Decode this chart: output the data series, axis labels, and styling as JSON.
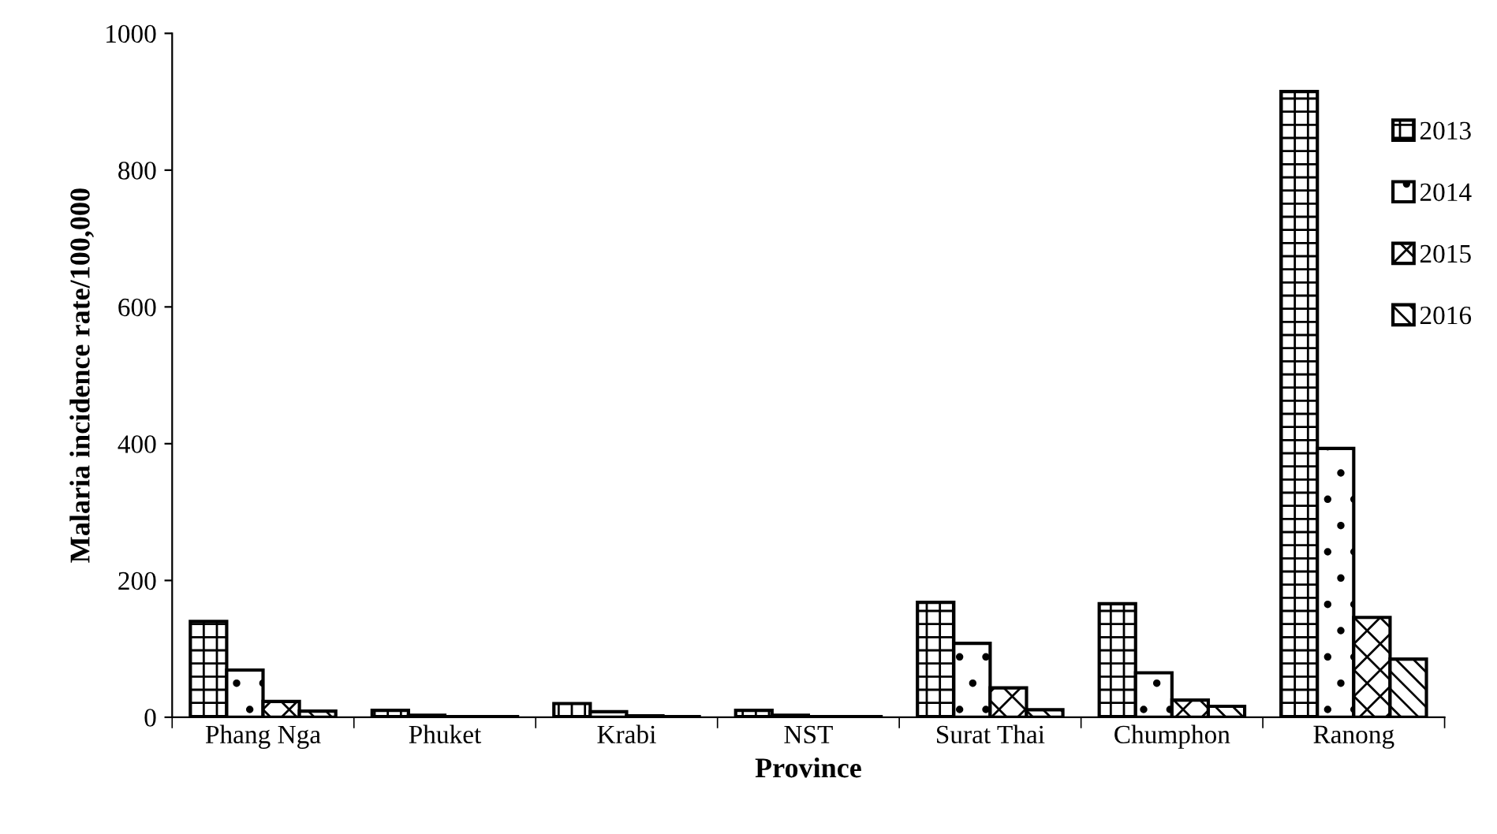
{
  "chart_data": {
    "type": "bar",
    "xlabel": "Province",
    "ylabel": "Malaria incidence rate/100,000",
    "categories": [
      "Phang Nga",
      "Phuket",
      "Krabi",
      "NST",
      "Surat Thai",
      "Chumphon",
      "Ranong"
    ],
    "series": [
      {
        "name": "2013",
        "color": "#000000",
        "values": [
          140,
          10,
          20,
          10,
          168,
          166,
          915
        ]
      },
      {
        "name": "2014",
        "color": "#000000",
        "values": [
          69,
          3,
          8,
          3,
          108,
          65,
          393
        ]
      },
      {
        "name": "2015",
        "color": "#000000",
        "values": [
          23,
          1,
          2,
          1,
          43,
          25,
          146
        ]
      },
      {
        "name": "2016",
        "color": "#000000",
        "values": [
          9,
          1,
          1,
          1,
          11,
          16,
          85
        ]
      }
    ],
    "ylim": [
      0,
      1000
    ],
    "yticks": [
      0,
      200,
      400,
      600,
      800,
      1000
    ],
    "grid": false,
    "legend": "right"
  }
}
